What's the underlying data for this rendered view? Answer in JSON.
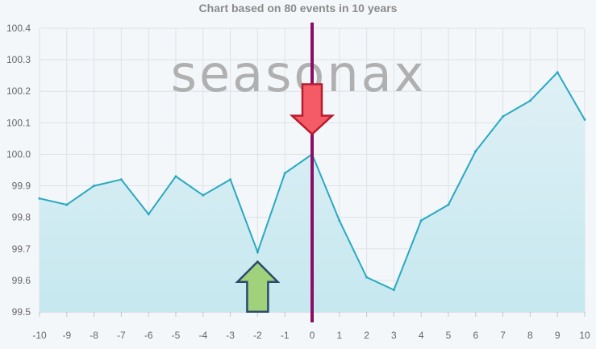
{
  "watermark": "seasonax",
  "colors": {
    "line": "#29a9c1",
    "area_top": "#dff0f6",
    "area_bottom": "#c6e8ef",
    "grid": "#dde2e6",
    "event_line": "#8b0e66",
    "down_arrow_fill": "#f45b66",
    "down_arrow_stroke": "#b71c2c",
    "up_arrow_fill": "#9fd27a",
    "up_arrow_stroke": "#2d4a6e"
  },
  "chart_data": {
    "type": "area",
    "title": "Chart based on 80 events in 10 years",
    "xlabel": "",
    "ylabel": "",
    "x": [
      -10,
      -9,
      -8,
      -7,
      -6,
      -5,
      -4,
      -3,
      -2,
      -1,
      0,
      1,
      2,
      3,
      4,
      5,
      6,
      7,
      8,
      9,
      10
    ],
    "series": [
      {
        "name": "",
        "values": [
          99.86,
          99.84,
          99.9,
          99.92,
          99.81,
          99.93,
          99.87,
          99.92,
          99.69,
          99.94,
          100.0,
          99.79,
          99.61,
          99.57,
          99.79,
          99.84,
          100.01,
          100.12,
          100.17,
          100.26,
          100.11
        ]
      }
    ],
    "xlim": [
      -10,
      10
    ],
    "ylim": [
      99.5,
      100.4
    ],
    "x_ticks": [
      "-10",
      "-9",
      "-8",
      "-7",
      "-6",
      "-5",
      "-4",
      "-3",
      "-2",
      "-1",
      "0",
      "1",
      "2",
      "3",
      "4",
      "5",
      "6",
      "7",
      "8",
      "9",
      "10"
    ],
    "y_ticks": [
      "99.5",
      "99.6",
      "99.7",
      "99.8",
      "99.9",
      "100.0",
      "100.1",
      "100.2",
      "100.3",
      "100.4"
    ],
    "grid": true,
    "event_marker_x": 0,
    "annotations": [
      {
        "type": "arrow-down",
        "x": 0,
        "y": 100.0,
        "color": "red"
      },
      {
        "type": "arrow-up",
        "x": -2,
        "y": 99.69,
        "color": "green"
      }
    ]
  }
}
